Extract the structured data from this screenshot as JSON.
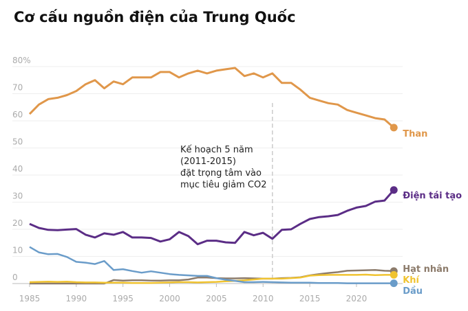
{
  "chart_data": {
    "type": "line",
    "title": "Cơ cấu nguồn điện của Trung Quốc",
    "annotation": [
      "Kế hoạch 5 năm",
      "(2011-2015)",
      "đặt trọng tâm vào",
      "mục tiêu giảm CO2"
    ],
    "marker_x": 2011,
    "x": [
      1985,
      1986,
      1987,
      1988,
      1989,
      1990,
      1991,
      1992,
      1993,
      1994,
      1995,
      1996,
      1997,
      1998,
      1999,
      2000,
      2001,
      2002,
      2003,
      2004,
      2005,
      2006,
      2007,
      2008,
      2009,
      2010,
      2011,
      2012,
      2013,
      2014,
      2015,
      2016,
      2017,
      2018,
      2019,
      2020,
      2021,
      2022,
      2023,
      2024
    ],
    "xlim": [
      1984,
      2025
    ],
    "xticks": [
      1985,
      1990,
      1995,
      2000,
      2005,
      2010,
      2015,
      2020
    ],
    "ylim": [
      0,
      80
    ],
    "yticks": [
      0,
      10,
      20,
      30,
      40,
      50,
      60,
      70,
      {
        "value": 80,
        "label": "80%"
      }
    ],
    "grid": true,
    "series": [
      {
        "name": "Than",
        "color": "#e0974a",
        "values": [
          62.5,
          66,
          68,
          68.5,
          69.5,
          71,
          73.5,
          75,
          72,
          74.5,
          73.5,
          76,
          76,
          76,
          78,
          78,
          76,
          77.5,
          78.5,
          77.5,
          78.5,
          79,
          79.5,
          76.5,
          77.5,
          76,
          77.5,
          74,
          74,
          71.5,
          68.5,
          67.5,
          66.5,
          66,
          64,
          63,
          62,
          61,
          60.5,
          57.5
        ]
      },
      {
        "name": "Điện tái tạo",
        "color": "#5b2d86",
        "values": [
          22,
          20.5,
          19.8,
          19.7,
          19.9,
          20.1,
          18,
          17,
          18.5,
          18,
          19,
          17,
          17,
          16.8,
          15.5,
          16.3,
          19,
          17.5,
          14.5,
          15.8,
          15.8,
          15.2,
          15,
          19,
          17.8,
          18.7,
          16.5,
          19.8,
          20,
          22,
          23.8,
          24.5,
          24.8,
          25.3,
          26.8,
          28,
          28.6,
          30.2,
          30.6,
          34.5
        ]
      },
      {
        "name": "Hạt nhân",
        "color": "#8c7b6b",
        "values": [
          0,
          0,
          0,
          0,
          0,
          0,
          0,
          0,
          0,
          1.3,
          1.1,
          1.2,
          1.2,
          1.1,
          1.1,
          1.2,
          1.2,
          1.5,
          2.2,
          2.2,
          2,
          1.9,
          1.9,
          2,
          1.9,
          1.8,
          1.8,
          2,
          2.1,
          2.3,
          3,
          3.5,
          3.9,
          4.2,
          4.7,
          4.8,
          4.9,
          5,
          4.7,
          4.6
        ]
      },
      {
        "name": "Khí",
        "color": "#f0c330",
        "values": [
          0.5,
          0.6,
          0.7,
          0.6,
          0.7,
          0.5,
          0.4,
          0.4,
          0.3,
          0.3,
          0.3,
          0.2,
          0.2,
          0.2,
          0.3,
          0.4,
          0.5,
          0.5,
          0.4,
          0.5,
          0.6,
          0.8,
          1,
          1.2,
          1.5,
          1.8,
          1.8,
          1.8,
          2,
          2.2,
          2.9,
          3.1,
          3.2,
          3.2,
          3.2,
          3.2,
          3.3,
          3.1,
          3.2,
          3.2
        ]
      },
      {
        "name": "Dầu",
        "color": "#6a9cc9",
        "values": [
          13.5,
          11.5,
          10.8,
          10.9,
          9.8,
          8,
          7.7,
          7.2,
          8.3,
          5,
          5.3,
          4.6,
          4,
          4.5,
          4,
          3.5,
          3.2,
          3,
          2.8,
          2.8,
          2,
          1.4,
          1,
          0.5,
          0.5,
          0.6,
          0.5,
          0.4,
          0.3,
          0.3,
          0.3,
          0.2,
          0.2,
          0.2,
          0.1,
          0.1,
          0.1,
          0.1,
          0.1,
          0.1
        ]
      }
    ]
  }
}
